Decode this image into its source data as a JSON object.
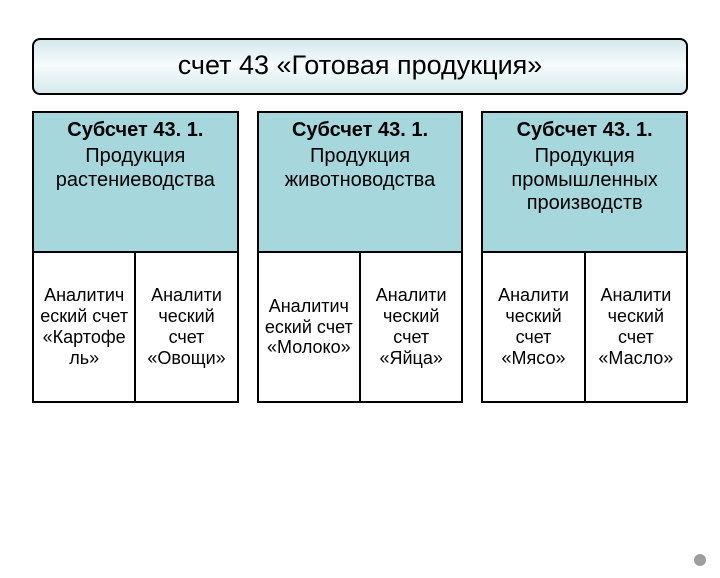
{
  "title": "счет 43 «Готовая продукция»",
  "colors": {
    "title_gradient_edge": "#d5e9ec",
    "title_gradient_mid": "#f7fcfc",
    "subhead_bg": "#a6d7dd",
    "border": "#000000",
    "corner_dot": "#9aa0a0"
  },
  "columns": [
    {
      "subaccount_title": "Субсчет 43. 1.",
      "subaccount_desc": "Продукция растениеводства",
      "cells": [
        "Аналитич\nеский счет «Картофе\nль»",
        "Аналити\nческий счет «Овощи»"
      ]
    },
    {
      "subaccount_title": "Субсчет 43. 1.",
      "subaccount_desc": "Продукция животноводства",
      "cells": [
        "Аналитич\nеский счет «Молоко»",
        "Аналити\nческий счет «Яйца»"
      ]
    },
    {
      "subaccount_title": "Субсчет 43. 1.",
      "subaccount_desc": "Продукция промышленных производств",
      "cells": [
        "Аналити\nческий счет «Мясо»",
        "Аналити\nческий счет «Масло»"
      ]
    }
  ]
}
